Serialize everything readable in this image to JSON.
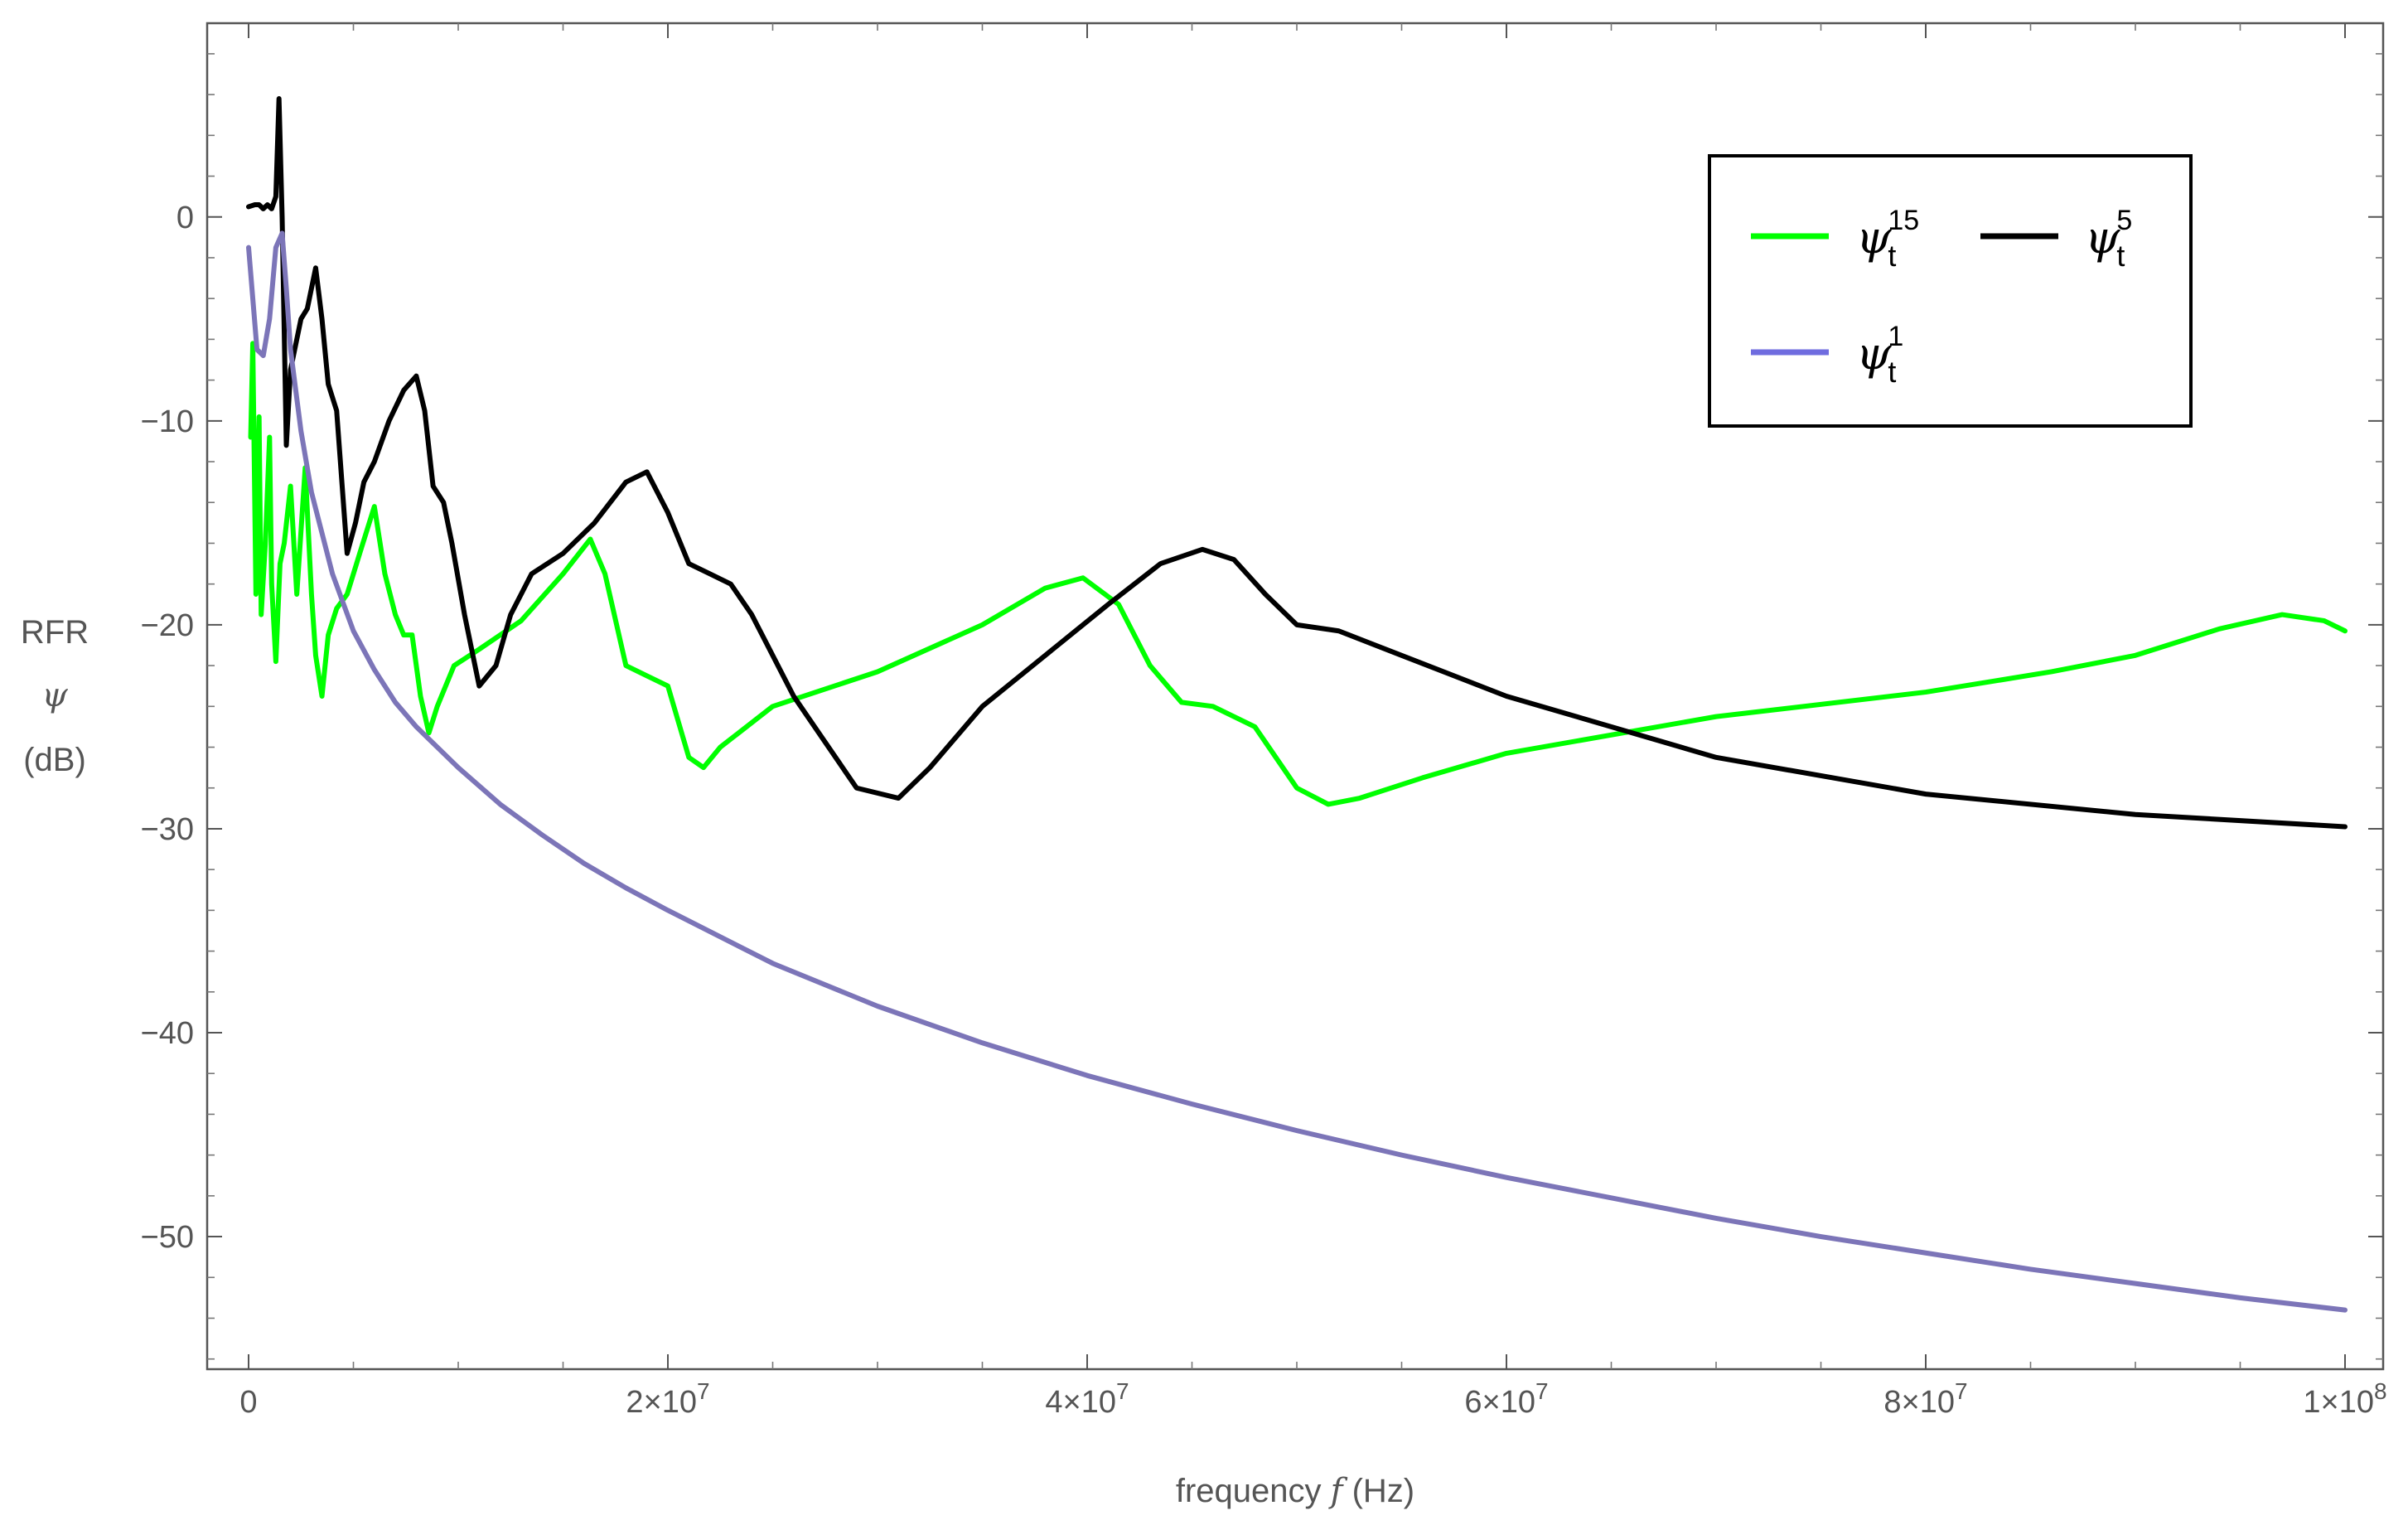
{
  "chart_data": {
    "type": "line",
    "xlabel_parts": {
      "text1": "frequency ",
      "sym": "f",
      "text2": " (Hz)"
    },
    "ylabel_parts": {
      "line1": "RFR",
      "line2": "ψ",
      "line3": "(dB)"
    },
    "xlim": [
      0,
      100000000
    ],
    "ylim": [
      -56.5,
      9.5
    ],
    "x_ticks": [
      {
        "value": 0,
        "label": "0"
      },
      {
        "value": 20000000,
        "mantissa": "2",
        "exp": "7"
      },
      {
        "value": 40000000,
        "mantissa": "4",
        "exp": "7"
      },
      {
        "value": 60000000,
        "mantissa": "6",
        "exp": "7"
      },
      {
        "value": 80000000,
        "mantissa": "8",
        "exp": "7"
      },
      {
        "value": 100000000,
        "mantissa": "1",
        "exp": "8"
      }
    ],
    "y_ticks": [
      {
        "value": 0,
        "label": "0"
      },
      {
        "value": -10,
        "label": "−10"
      },
      {
        "value": -20,
        "label": "−20"
      },
      {
        "value": -30,
        "label": "−30"
      },
      {
        "value": -40,
        "label": "−40"
      },
      {
        "value": -50,
        "label": "−50"
      }
    ],
    "grid": false,
    "legend_position": "top-right",
    "series": [
      {
        "name": "ψ_t^15",
        "legend": {
          "sym": "ψ",
          "sub": "t",
          "sup": "15"
        },
        "color": "#00ff00",
        "x": [
          100000,
          200000,
          350000,
          500000,
          600000,
          800000,
          1000000,
          1100000,
          1300000,
          1500000,
          1700000,
          2000000,
          2300000,
          2700000,
          3000000,
          3200000,
          3500000,
          3800000,
          4200000,
          4700000,
          5300000,
          6000000,
          6500000,
          7000000,
          7400000,
          7800000,
          8200000,
          8600000,
          9000000,
          9800000,
          11000000,
          13000000,
          15000000,
          16300000,
          17000000,
          18000000,
          19000000,
          20000000,
          21000000,
          21700000,
          22500000,
          25000000,
          30000000,
          35000000,
          38000000,
          39800000,
          41500000,
          43000000,
          44500000,
          46000000,
          48000000,
          50000000,
          51500000,
          53000000,
          56000000,
          60000000,
          70000000,
          80000000,
          86000000,
          90000000,
          94000000,
          97000000,
          99000000,
          100000000
        ],
        "y": [
          -10.8,
          -6.2,
          -18.5,
          -9.8,
          -19.5,
          -16.0,
          -10.8,
          -18.0,
          -21.8,
          -17.0,
          -16.0,
          -13.2,
          -18.5,
          -12.3,
          -18.5,
          -21.5,
          -23.5,
          -20.5,
          -19.2,
          -18.5,
          -16.5,
          -14.2,
          -17.5,
          -19.5,
          -20.5,
          -20.5,
          -23.5,
          -25.3,
          -24.0,
          -22.0,
          -21.2,
          -19.8,
          -17.5,
          -15.8,
          -17.5,
          -22.0,
          -22.5,
          -23.0,
          -26.5,
          -27.0,
          -26.0,
          -24.0,
          -22.3,
          -20.0,
          -18.2,
          -17.7,
          -19.0,
          -22.0,
          -23.8,
          -24.0,
          -25.0,
          -28.0,
          -28.8,
          -28.5,
          -27.5,
          -26.3,
          -24.5,
          -23.3,
          -22.3,
          -21.5,
          -20.2,
          -19.5,
          -19.8,
          -20.3
        ]
      },
      {
        "name": "ψ_t^5",
        "legend": {
          "sym": "ψ",
          "sub": "t",
          "sup": "5"
        },
        "color": "#000000",
        "x": [
          0,
          300000,
          500000,
          700000,
          900000,
          1100000,
          1300000,
          1450000,
          1600000,
          1800000,
          2000000,
          2200000,
          2500000,
          2800000,
          3200000,
          3500000,
          3800000,
          4200000,
          4700000,
          5100000,
          5500000,
          6000000,
          6700000,
          7400000,
          8000000,
          8400000,
          8800000,
          9300000,
          9700000,
          10300000,
          11000000,
          11800000,
          12500000,
          13500000,
          15000000,
          16500000,
          18000000,
          19000000,
          20000000,
          21000000,
          22000000,
          23000000,
          24000000,
          26000000,
          29000000,
          31000000,
          32500000,
          35000000,
          38000000,
          41000000,
          43500000,
          45500000,
          47000000,
          48500000,
          50000000,
          52000000,
          55000000,
          60000000,
          70000000,
          80000000,
          90000000,
          100000000
        ],
        "y": [
          0.5,
          0.6,
          0.6,
          0.4,
          0.6,
          0.4,
          1.0,
          5.8,
          0.0,
          -11.2,
          -7.5,
          -6.5,
          -5.0,
          -4.5,
          -2.5,
          -5.0,
          -8.2,
          -9.5,
          -16.5,
          -15.0,
          -13.0,
          -12.0,
          -10.0,
          -8.5,
          -7.8,
          -9.5,
          -13.2,
          -14.0,
          -16.0,
          -19.5,
          -23.0,
          -22.0,
          -19.5,
          -17.5,
          -16.5,
          -15.0,
          -13.0,
          -12.5,
          -14.5,
          -17.0,
          -17.5,
          -18.0,
          -19.5,
          -23.5,
          -28.0,
          -28.5,
          -27.0,
          -24.0,
          -21.5,
          -19.0,
          -17.0,
          -16.3,
          -16.8,
          -18.5,
          -20.0,
          -20.3,
          -21.5,
          -23.5,
          -26.5,
          -28.3,
          -29.3,
          -29.9
        ]
      },
      {
        "name": "ψ_t^1",
        "legend": {
          "sym": "ψ",
          "sub": "t",
          "sup": "1"
        },
        "color": "#6f6cdf",
        "line_color": "#7c75b8",
        "x": [
          0,
          200000,
          400000,
          700000,
          1000000,
          1300000,
          1600000,
          1800000,
          2000000,
          2500000,
          3000000,
          4000000,
          5000000,
          6000000,
          7000000,
          8000000,
          9000000,
          10000000,
          12000000,
          14000000,
          16000000,
          18000000,
          20000000,
          25000000,
          30000000,
          35000000,
          40000000,
          45000000,
          50000000,
          55000000,
          60000000,
          65000000,
          70000000,
          75000000,
          80000000,
          85000000,
          90000000,
          95000000,
          100000000
        ],
        "y": [
          -1.5,
          -4.0,
          -6.5,
          -6.8,
          -5.0,
          -1.5,
          -0.8,
          -3.5,
          -6.5,
          -10.5,
          -13.5,
          -17.5,
          -20.3,
          -22.2,
          -23.8,
          -25.0,
          -26.0,
          -27.0,
          -28.8,
          -30.3,
          -31.7,
          -32.9,
          -34.0,
          -36.6,
          -38.7,
          -40.5,
          -42.1,
          -43.5,
          -44.8,
          -46.0,
          -47.1,
          -48.1,
          -49.1,
          -50.0,
          -50.8,
          -51.6,
          -52.3,
          -53.0,
          -53.6
        ]
      }
    ]
  }
}
